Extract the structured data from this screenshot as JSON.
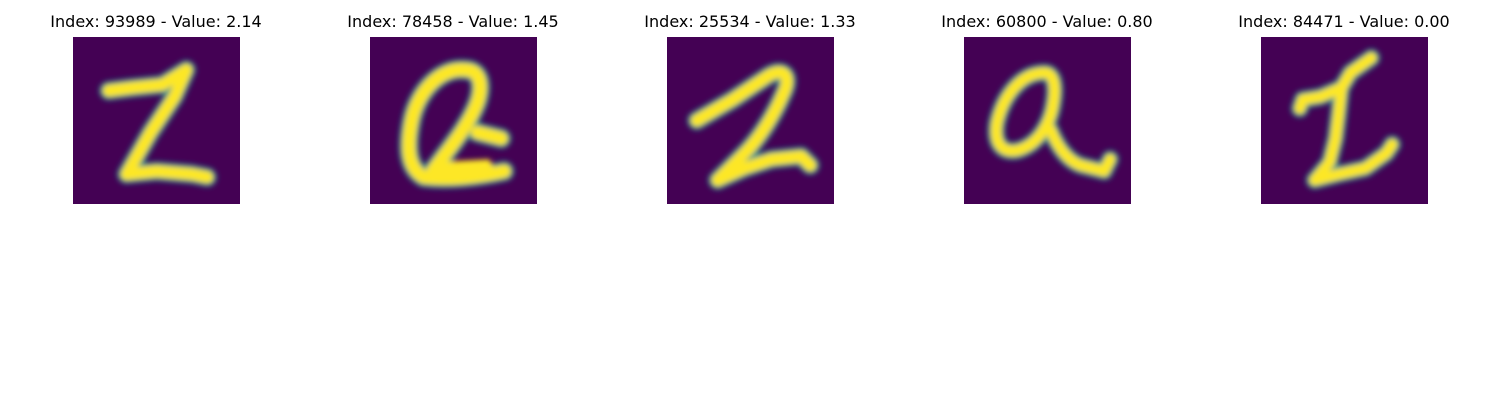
{
  "figure": {
    "background": "#ffffff",
    "colormap": {
      "low": "#440154",
      "mid": "#21918c",
      "high": "#fde725"
    },
    "panels": [
      {
        "title": "Index: 93989 - Value: 2.14",
        "index": 93989,
        "value": 2.14,
        "image_content": "handwritten digit 2"
      },
      {
        "title": "Index: 78458 - Value: 1.45",
        "index": 78458,
        "value": 1.45,
        "image_content": "handwritten digit 2 with closed loop"
      },
      {
        "title": "Index: 25534 - Value: 1.33",
        "index": 25534,
        "value": 1.33,
        "image_content": "handwritten digit 2"
      },
      {
        "title": "Index: 60800 - Value: 0.80",
        "index": 60800,
        "value": 0.8,
        "image_content": "handwritten digit 2 with loop"
      },
      {
        "title": "Index: 84471 - Value: 0.00",
        "index": 84471,
        "value": 0.0,
        "image_content": "handwritten digit resembling 1 or 2"
      }
    ]
  }
}
